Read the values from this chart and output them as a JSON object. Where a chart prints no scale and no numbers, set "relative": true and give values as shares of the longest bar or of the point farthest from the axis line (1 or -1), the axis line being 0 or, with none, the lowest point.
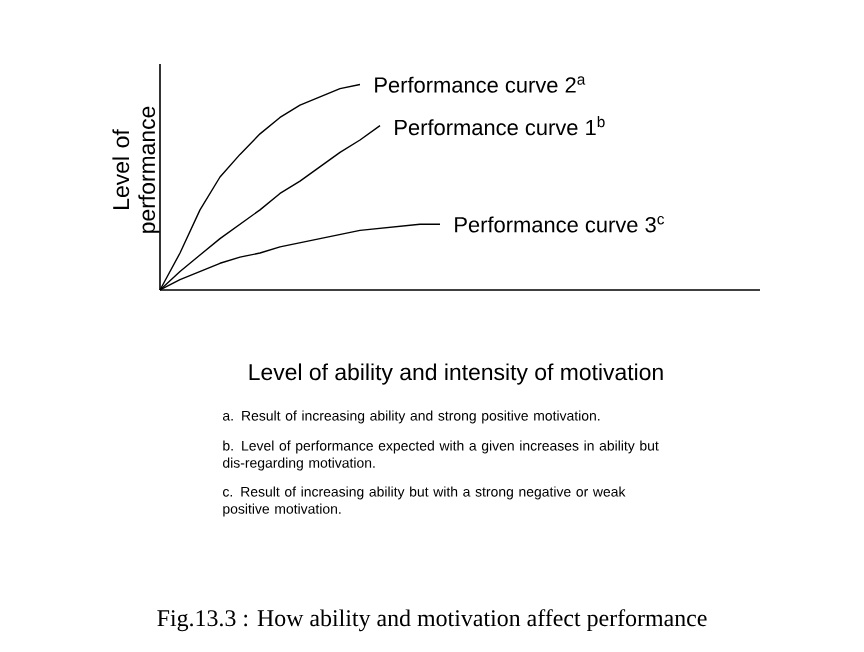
{
  "chart_data": {
    "type": "line",
    "relative": true,
    "tick_labels": false,
    "xlabel": "Level of ability and intensity of motivation",
    "ylabel": "Level of performance",
    "categories": [
      null,
      null,
      null,
      null,
      null,
      null,
      null,
      null,
      null,
      null,
      null,
      null,
      null,
      null,
      null,
      null,
      null,
      null,
      null,
      null,
      null,
      null,
      null,
      null,
      null,
      null,
      null,
      null,
      null,
      null,
      null
    ],
    "series": [
      {
        "name": "Performance curve 2$^{a}$",
        "color": "#000000",
        "values": [
          0,
          0.18,
          0.39,
          0.55,
          0.66,
          0.76,
          0.84,
          0.9,
          0.94,
          0.98,
          1.0,
          null,
          null,
          null,
          null,
          null,
          null,
          null,
          null,
          null,
          null,
          null,
          null,
          null,
          null,
          null,
          null,
          null,
          null,
          null,
          null
        ]
      },
      {
        "name": "Performance curve 1$^{b}$",
        "color": "#000000",
        "values": [
          0,
          0.09,
          0.17,
          0.25,
          0.32,
          0.39,
          0.47,
          0.53,
          0.6,
          0.67,
          0.73,
          0.8,
          null,
          null,
          null,
          null,
          null,
          null,
          null,
          null,
          null,
          null,
          null,
          null,
          null,
          null,
          null,
          null,
          null,
          null,
          null
        ]
      },
      {
        "name": "Performance curve 3$^{c}$",
        "color": "#000000",
        "values": [
          0,
          0.05,
          0.09,
          0.13,
          0.16,
          0.18,
          0.21,
          0.23,
          0.25,
          0.27,
          0.29,
          0.3,
          0.31,
          0.32,
          0.32,
          null,
          null,
          null,
          null,
          null,
          null,
          null,
          null,
          null,
          null,
          null,
          null,
          null,
          null,
          null,
          null
        ]
      }
    ],
    "annotations": [
      "a. Result of increasing ability and strong positive motivation.",
      "b. Level of performance expected with a given increases in ability but dis-regarding motivation.",
      "c. Result of increasing ability but with a strong negative or weak positive motivation.",
      "Fig.13.3 : How ability and motivation affect performance"
    ]
  }
}
